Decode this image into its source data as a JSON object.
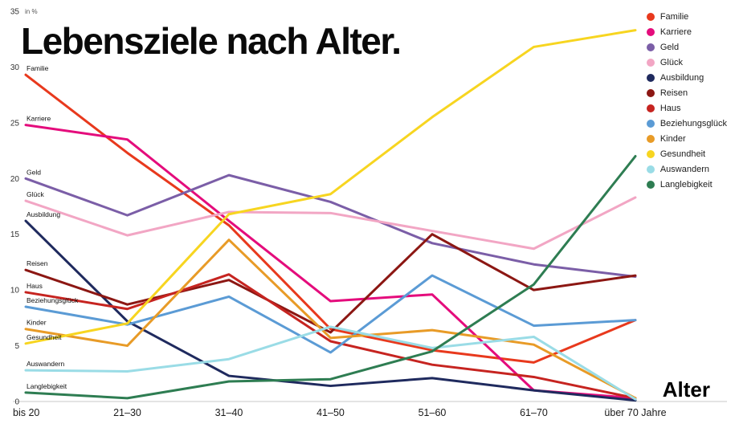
{
  "title": "Lebensziele nach Alter.",
  "y_axis_unit": "in %",
  "x_axis_title": "Alter",
  "chart_data": {
    "type": "line",
    "categories": [
      "bis 20",
      "21–30",
      "31–40",
      "41–50",
      "51–60",
      "61–70",
      "über 70 Jahre"
    ],
    "y_ticks": [
      0,
      5,
      10,
      15,
      20,
      25,
      30,
      35
    ],
    "ylim": [
      0,
      35
    ],
    "grid": false,
    "legend_position": "top-right",
    "series": [
      {
        "name": "Familie",
        "color": "#e8391d",
        "values": [
          29.3,
          22.3,
          15.8,
          6.5,
          4.6,
          3.5,
          7.3
        ]
      },
      {
        "name": "Karriere",
        "color": "#e40c7c",
        "values": [
          24.8,
          23.5,
          16.2,
          9.0,
          9.6,
          1.0,
          0.3
        ]
      },
      {
        "name": "Geld",
        "color": "#7b5ea7",
        "values": [
          20.0,
          16.7,
          20.3,
          17.9,
          14.2,
          12.3,
          11.2
        ]
      },
      {
        "name": "Glück",
        "color": "#f2a6c4",
        "values": [
          18.0,
          14.9,
          17.0,
          16.9,
          15.3,
          13.7,
          18.3
        ]
      },
      {
        "name": "Ausbildung",
        "color": "#1f2a5e",
        "values": [
          16.2,
          7.2,
          2.3,
          1.4,
          2.1,
          1.0,
          0.1
        ]
      },
      {
        "name": "Reisen",
        "color": "#8c1713",
        "values": [
          11.8,
          8.7,
          10.9,
          6.2,
          15.0,
          10.0,
          11.3
        ]
      },
      {
        "name": "Haus",
        "color": "#c62420",
        "values": [
          9.8,
          8.3,
          11.4,
          5.4,
          3.3,
          2.2,
          0.3
        ]
      },
      {
        "name": "Beziehungsglück",
        "color": "#5b9bd5",
        "values": [
          8.5,
          6.9,
          9.4,
          4.4,
          11.3,
          6.8,
          7.3
        ]
      },
      {
        "name": "Kinder",
        "color": "#e89b27",
        "values": [
          6.5,
          5.0,
          14.5,
          5.7,
          6.4,
          5.1,
          0.3
        ]
      },
      {
        "name": "Gesundheit",
        "color": "#f7d520",
        "values": [
          5.2,
          7.0,
          16.8,
          18.6,
          25.5,
          31.8,
          33.3
        ]
      },
      {
        "name": "Auswandern",
        "color": "#9adce6",
        "values": [
          2.8,
          2.7,
          3.8,
          6.7,
          4.8,
          5.8,
          0.2
        ]
      },
      {
        "name": "Langlebigkeit",
        "color": "#2e7d52",
        "values": [
          0.8,
          0.3,
          1.8,
          2.0,
          4.5,
          10.5,
          22.0
        ]
      }
    ]
  }
}
